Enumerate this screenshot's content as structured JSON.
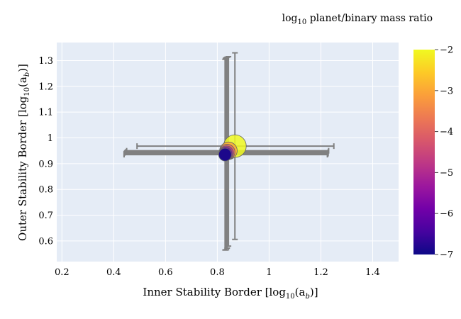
{
  "chart_data": {
    "type": "scatter",
    "xlabel_parts": [
      "Inner Stability Border [log",
      "10",
      "(a",
      "b",
      ")]"
    ],
    "ylabel_parts": [
      "Outer Stability Border [log",
      "10",
      "(a",
      "b",
      ")]"
    ],
    "colorbar_title_parts": [
      "log",
      "10",
      " planet/binary mass ratio"
    ],
    "xlim": [
      0.18,
      1.5
    ],
    "ylim": [
      0.52,
      1.37
    ],
    "xticks": [
      0.2,
      0.4,
      0.6,
      0.8,
      1,
      1.2,
      1.4
    ],
    "xtick_labels": [
      "0.2",
      "0.4",
      "0.6",
      "0.8",
      "1",
      "1.2",
      "1.4"
    ],
    "yticks": [
      0.6,
      0.7,
      0.8,
      0.9,
      1,
      1.1,
      1.2,
      1.3
    ],
    "ytick_labels": [
      "0.6",
      "0.7",
      "0.8",
      "0.9",
      "1",
      "1.1",
      "1.2",
      "1.3"
    ],
    "colorbar": {
      "range": [
        -7,
        -2
      ],
      "ticks": [
        -7,
        -6,
        -5,
        -4,
        -3,
        -2
      ],
      "tick_labels": [
        "−7",
        "−6",
        "−5",
        "−4",
        "−3",
        "−2"
      ]
    },
    "grid": true,
    "points": [
      {
        "x": 0.868,
        "y": 0.968,
        "xerr": [
          0.378,
          0.382
        ],
        "yerr": [
          0.362,
          0.362
        ],
        "mass_ratio": -2,
        "size": 1.0
      },
      {
        "x": 0.843,
        "y": 0.95,
        "xerr": [
          0.393,
          0.387
        ],
        "yerr": [
          0.37,
          0.365
        ],
        "mass_ratio": -3,
        "size": 0.72
      },
      {
        "x": 0.838,
        "y": 0.945,
        "xerr": [
          0.393,
          0.39
        ],
        "yerr": [
          0.373,
          0.368
        ],
        "mass_ratio": -4,
        "size": 0.62
      },
      {
        "x": 0.835,
        "y": 0.941,
        "xerr": [
          0.393,
          0.393
        ],
        "yerr": [
          0.375,
          0.37
        ],
        "mass_ratio": -5,
        "size": 0.55
      },
      {
        "x": 0.832,
        "y": 0.938,
        "xerr": [
          0.392,
          0.395
        ],
        "yerr": [
          0.373,
          0.371
        ],
        "mass_ratio": -6,
        "size": 0.5
      },
      {
        "x": 0.83,
        "y": 0.935,
        "xerr": [
          0.39,
          0.395
        ],
        "yerr": [
          0.37,
          0.37
        ],
        "mass_ratio": -7,
        "size": 0.46
      }
    ],
    "colors": {
      "background": "#e5ecf6",
      "grid": "#ffffff",
      "errorbar": "#808080",
      "scale": [
        "#0d0887",
        "#46039f",
        "#7201a8",
        "#9c179e",
        "#bd3786",
        "#d8576b",
        "#ed7953",
        "#fb9f3a",
        "#fdca26",
        "#f0f921"
      ]
    }
  }
}
